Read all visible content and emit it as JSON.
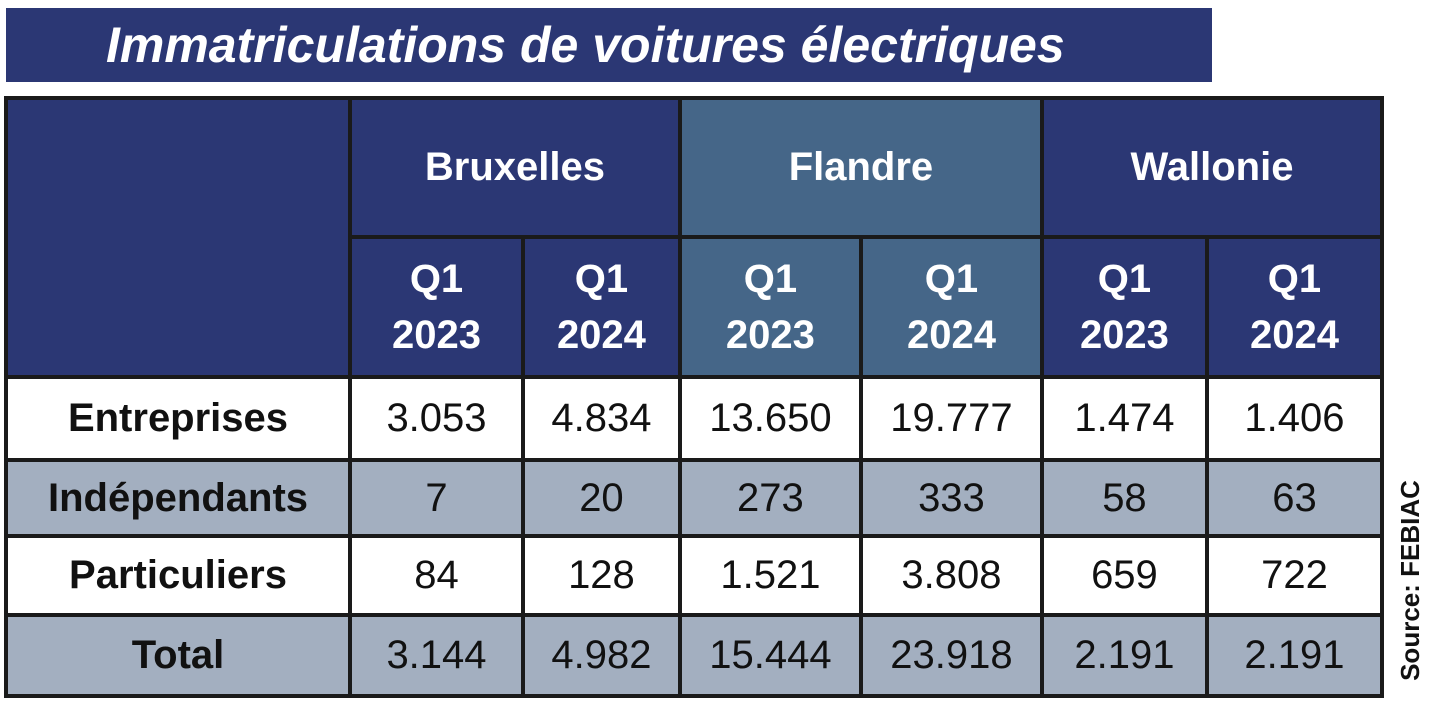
{
  "title": "Immatriculations de voitures électriques",
  "source": "Source: FEBIAC",
  "colors": {
    "header_dark": "#2b3774",
    "header_mid": "#456688",
    "row_grey": "#a3afc0",
    "row_white": "#ffffff"
  },
  "chart_data": {
    "type": "table",
    "title": "Immatriculations de voitures électriques",
    "regions": [
      "Bruxelles",
      "Flandre",
      "Wallonie"
    ],
    "periods": [
      {
        "q": "Q1",
        "year": "2023"
      },
      {
        "q": "Q1",
        "year": "2024"
      },
      {
        "q": "Q1",
        "year": "2023"
      },
      {
        "q": "Q1",
        "year": "2024"
      },
      {
        "q": "Q1",
        "year": "2023"
      },
      {
        "q": "Q1",
        "year": "2024"
      }
    ],
    "rows": [
      {
        "label": "Entreprises",
        "values": [
          "3.053",
          "4.834",
          "13.650",
          "19.777",
          "1.474",
          "1.406"
        ]
      },
      {
        "label": "Indépendants",
        "values": [
          "7",
          "20",
          "273",
          "333",
          "58",
          "63"
        ]
      },
      {
        "label": "Particuliers",
        "values": [
          "84",
          "128",
          "1.521",
          "3.808",
          "659",
          "722"
        ]
      },
      {
        "label": "Total",
        "values": [
          "3.144",
          "4.982",
          "15.444",
          "23.918",
          "2.191",
          "2.191"
        ]
      }
    ]
  }
}
